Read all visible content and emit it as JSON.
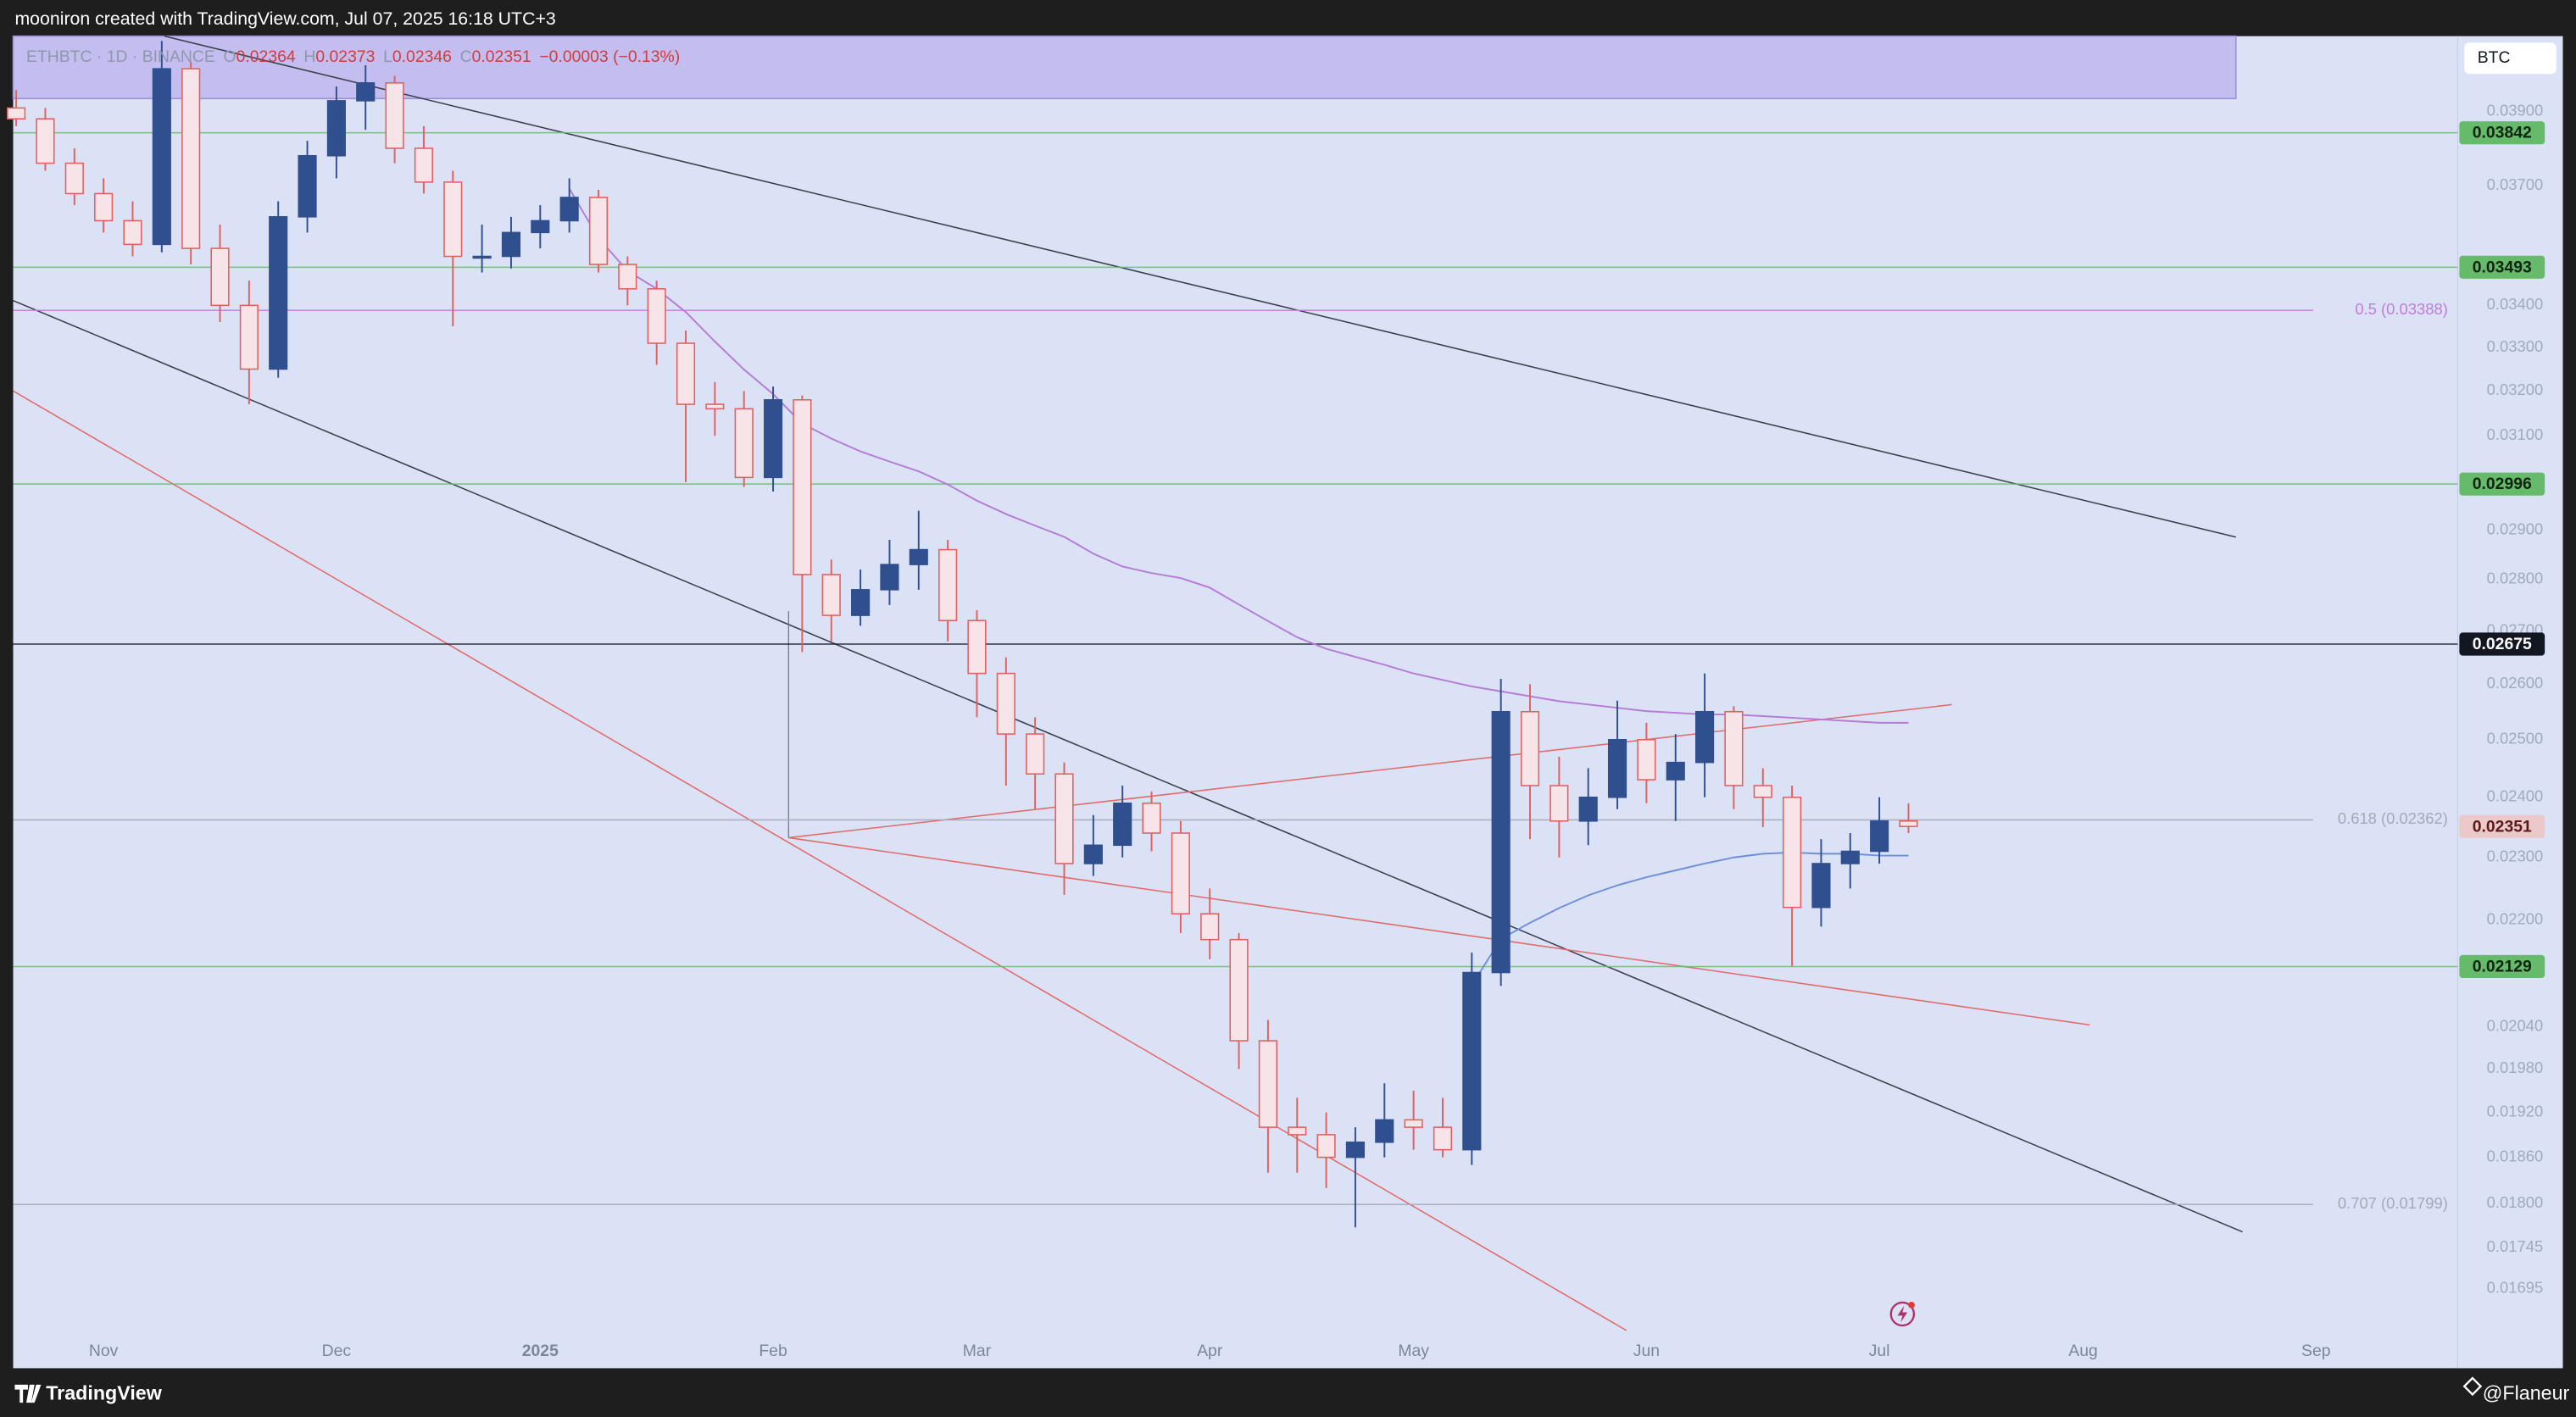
{
  "header": {
    "caption": "mooniron created with TradingView.com, Jul 07, 2025 16:18 UTC+3"
  },
  "chart_data": {
    "type": "candlestick",
    "legend": {
      "symbol": "ETHBTC · 1D · BINANCE",
      "items": [
        {
          "label": "O",
          "value": "0.02364"
        },
        {
          "label": "H",
          "value": "0.02373"
        },
        {
          "label": "L",
          "value": "0.02346"
        },
        {
          "label": "C",
          "value": "0.02351"
        }
      ],
      "change": "−0.00003 (−0.13%)"
    },
    "currency": "BTC",
    "categories": [
      null,
      null,
      null,
      "Nov",
      null,
      null,
      null,
      null,
      null,
      null,
      null,
      "Dec",
      null,
      null,
      null,
      null,
      null,
      null,
      "2025",
      null,
      null,
      null,
      null,
      null,
      null,
      null,
      "Feb",
      null,
      null,
      null,
      null,
      null,
      null,
      "Mar",
      null,
      null,
      null,
      null,
      null,
      null,
      null,
      "Apr",
      null,
      null,
      null,
      null,
      null,
      null,
      "May",
      null,
      null,
      null,
      null,
      null,
      null,
      null,
      "Jun",
      null,
      null,
      null,
      null,
      null,
      null,
      null,
      "Jul",
      null,
      null,
      null,
      null,
      null,
      null,
      "Aug",
      null,
      null,
      null,
      null,
      null,
      null,
      null,
      "Sep",
      null,
      null,
      null,
      null
    ],
    "open": [
      0.0391,
      0.0388,
      0.0376,
      0.0368,
      0.0361,
      0.0355,
      0.0402,
      0.0354,
      0.034,
      0.0325,
      0.0362,
      0.0378,
      0.0393,
      0.0398,
      0.038,
      0.0371,
      0.0352,
      0.0352,
      0.0358,
      0.0361,
      0.0367,
      0.035,
      0.0344,
      0.0331,
      0.0317,
      0.0316,
      0.0301,
      0.0318,
      0.0281,
      0.0273,
      0.0278,
      0.0283,
      0.0286,
      0.0272,
      0.0262,
      0.0251,
      0.0244,
      0.0229,
      0.0232,
      0.0239,
      0.0234,
      0.0221,
      0.0217,
      0.0202,
      0.019,
      0.0189,
      0.0186,
      0.0188,
      0.0191,
      0.019,
      0.0187,
      0.0212,
      0.0255,
      0.0242,
      0.0236,
      0.024,
      0.025,
      0.0243,
      0.0246,
      0.0255,
      0.0242,
      0.024,
      0.0222,
      0.0229,
      0.0231,
      0.0236,
      null,
      null,
      null,
      null,
      null,
      null,
      null,
      null,
      null,
      null,
      null,
      null,
      null,
      null,
      null,
      null,
      null,
      null
    ],
    "high": [
      0.0396,
      0.0391,
      0.038,
      0.0372,
      0.0366,
      0.041,
      0.0404,
      0.036,
      0.0346,
      0.0366,
      0.0382,
      0.0397,
      0.0403,
      0.04,
      0.0386,
      0.0374,
      0.036,
      0.0362,
      0.0365,
      0.0372,
      0.0369,
      0.0352,
      0.0346,
      0.0334,
      0.0322,
      0.032,
      0.0321,
      0.0319,
      0.0284,
      0.0282,
      0.0288,
      0.0294,
      0.0288,
      0.0274,
      0.0265,
      0.0254,
      0.0246,
      0.0237,
      0.0242,
      0.0241,
      0.0236,
      0.0225,
      0.0218,
      0.0205,
      0.0194,
      0.0192,
      0.019,
      0.0196,
      0.0195,
      0.0194,
      0.0215,
      0.0261,
      0.026,
      0.0247,
      0.0245,
      0.0257,
      0.0253,
      0.0251,
      0.0262,
      0.0256,
      0.0245,
      0.0242,
      0.0233,
      0.0234,
      0.024,
      0.0239,
      null,
      null,
      null,
      null,
      null,
      null,
      null,
      null,
      null,
      null,
      null,
      null,
      null,
      null,
      null,
      null,
      null,
      null
    ],
    "low": [
      0.0386,
      0.0374,
      0.0365,
      0.0358,
      0.0352,
      0.0353,
      0.035,
      0.0336,
      0.0317,
      0.0323,
      0.0358,
      0.0372,
      0.0385,
      0.0376,
      0.0368,
      0.0335,
      0.0348,
      0.0349,
      0.0354,
      0.0358,
      0.0348,
      0.034,
      0.0326,
      0.03,
      0.031,
      0.0299,
      0.0298,
      0.0266,
      0.0268,
      0.0271,
      0.0275,
      0.0278,
      0.0268,
      0.0254,
      0.0242,
      0.0238,
      0.0224,
      0.0227,
      0.023,
      0.0231,
      0.0218,
      0.0214,
      0.0198,
      0.0184,
      0.0184,
      0.0182,
      0.0177,
      0.0186,
      0.0187,
      0.0186,
      0.0185,
      0.021,
      0.0233,
      0.023,
      0.0232,
      0.0238,
      0.0239,
      0.0236,
      0.024,
      0.0238,
      0.0235,
      0.0213,
      0.0219,
      0.0225,
      0.0229,
      0.0234,
      null,
      null,
      null,
      null,
      null,
      null,
      null,
      null,
      null,
      null,
      null,
      null,
      null,
      null,
      null,
      null,
      null,
      null
    ],
    "close": [
      0.0388,
      0.0376,
      0.0368,
      0.0361,
      0.0355,
      0.0402,
      0.0354,
      0.034,
      0.0325,
      0.0362,
      0.0378,
      0.0393,
      0.0398,
      0.038,
      0.0371,
      0.0352,
      0.0352,
      0.0358,
      0.0361,
      0.0367,
      0.035,
      0.0344,
      0.0331,
      0.0317,
      0.0316,
      0.0301,
      0.0318,
      0.0281,
      0.0273,
      0.0278,
      0.0283,
      0.0286,
      0.0272,
      0.0262,
      0.0251,
      0.0244,
      0.0229,
      0.0232,
      0.0239,
      0.0234,
      0.0221,
      0.0217,
      0.0202,
      0.019,
      0.0189,
      0.0186,
      0.0188,
      0.0191,
      0.019,
      0.0187,
      0.0212,
      0.0255,
      0.0242,
      0.0236,
      0.024,
      0.025,
      0.0243,
      0.0246,
      0.0255,
      0.0242,
      0.024,
      0.0222,
      0.0229,
      0.0231,
      0.0236,
      0.02351,
      null,
      null,
      null,
      null,
      null,
      null,
      null,
      null,
      null,
      null,
      null,
      null,
      null,
      null,
      null,
      null,
      null,
      null
    ],
    "up_color": "#2f4f8f",
    "down_color": "#e0605e",
    "down_fill": "#f6e4e8",
    "overlays": [
      {
        "color": "#b57bd6",
        "values": [
          null,
          null,
          null,
          null,
          null,
          null,
          null,
          null,
          null,
          null,
          null,
          null,
          null,
          null,
          null,
          null,
          null,
          null,
          null,
          0.03693,
          0.03566,
          0.03484,
          0.0344,
          0.03384,
          0.03314,
          0.03249,
          0.03193,
          0.03127,
          0.03094,
          0.03066,
          0.03044,
          0.03023,
          0.02995,
          0.02961,
          0.02933,
          0.02909,
          0.02886,
          0.02852,
          0.02826,
          0.02813,
          0.02803,
          0.02784,
          0.02751,
          0.02719,
          0.02688,
          0.02666,
          0.02651,
          0.02636,
          0.0262,
          0.02608,
          0.02596,
          0.02587,
          0.02578,
          0.02569,
          0.02563,
          0.02557,
          0.02551,
          0.02548,
          0.02545,
          0.02545,
          0.02542,
          0.02539,
          0.02536,
          0.02533,
          0.0253,
          0.0253,
          null,
          null,
          null,
          null,
          null,
          null,
          null,
          null,
          null,
          null,
          null,
          null,
          null,
          null,
          null,
          null,
          null,
          null
        ]
      },
      {
        "color": "#6d8fd8",
        "values": [
          null,
          null,
          null,
          null,
          null,
          null,
          null,
          null,
          null,
          null,
          null,
          null,
          null,
          null,
          null,
          null,
          null,
          null,
          null,
          null,
          null,
          null,
          null,
          null,
          null,
          null,
          null,
          null,
          null,
          null,
          null,
          null,
          null,
          null,
          null,
          null,
          null,
          null,
          null,
          null,
          null,
          null,
          null,
          null,
          null,
          null,
          null,
          null,
          null,
          null,
          0.02101,
          0.02171,
          0.02196,
          0.02219,
          0.02239,
          0.02255,
          0.02268,
          0.02279,
          0.0229,
          0.023,
          0.02306,
          0.02308,
          0.02306,
          0.02306,
          0.02303,
          0.02303,
          null,
          null,
          null,
          null,
          null,
          null,
          null,
          null,
          null,
          null,
          null,
          null,
          null,
          null,
          null,
          null,
          null,
          null
        ]
      }
    ],
    "log_scale": true,
    "ylim": [
      0.01602,
      0.04114
    ],
    "yticks": [
      {
        "value": 0.039,
        "label": "0.03900"
      },
      {
        "value": 0.037,
        "label": "0.03700"
      },
      {
        "value": 0.034,
        "label": "0.03400"
      },
      {
        "value": 0.033,
        "label": "0.03300"
      },
      {
        "value": 0.032,
        "label": "0.03200"
      },
      {
        "value": 0.031,
        "label": "0.03100"
      },
      {
        "value": 0.029,
        "label": "0.02900"
      },
      {
        "value": 0.028,
        "label": "0.02800"
      },
      {
        "value": 0.027,
        "label": "0.02700"
      },
      {
        "value": 0.026,
        "label": "0.02600"
      },
      {
        "value": 0.025,
        "label": "0.02500"
      },
      {
        "value": 0.024,
        "label": "0.02400"
      },
      {
        "value": 0.023,
        "label": "0.02300"
      },
      {
        "value": 0.022,
        "label": "0.02200"
      },
      {
        "value": 0.0204,
        "label": "0.02040"
      },
      {
        "value": 0.0198,
        "label": "0.01980"
      },
      {
        "value": 0.0192,
        "label": "0.01920"
      },
      {
        "value": 0.0186,
        "label": "0.01860"
      },
      {
        "value": 0.018,
        "label": "0.01800"
      },
      0.01745,
      0.01695
    ],
    "levels": [
      {
        "value": 0.03842,
        "color": "#66bb6a",
        "text_color": "#0f2410",
        "line": true
      },
      {
        "value": 0.03493,
        "color": "#66bb6a",
        "text_color": "#0f2410",
        "line": true
      },
      {
        "value": 0.02996,
        "color": "#66bb6a",
        "text_color": "#0f2410",
        "line": true
      },
      {
        "value": 0.02675,
        "color": "#131722",
        "text_color": "#ffffff",
        "line": true
      },
      {
        "value": 0.02351,
        "color": "#ecc9c9",
        "text_color": "#5a1a1a",
        "line": false
      },
      {
        "value": 0.02129,
        "color": "#66bb6a",
        "text_color": "#0f2410",
        "line": true
      }
    ],
    "fib_levels": [
      {
        "label": "0.5 (0.03388)",
        "value": 0.03388,
        "color": "#c27bd9"
      },
      {
        "label": "0.618 (0.02362)",
        "value": 0.02362,
        "color": "#a3a9b8"
      },
      {
        "label": "0.707 (0.01799)",
        "value": 0.01799,
        "color": "#a3a9b8"
      }
    ]
  },
  "footer": {
    "brand": "TradingView",
    "author": "@Flaneur"
  }
}
